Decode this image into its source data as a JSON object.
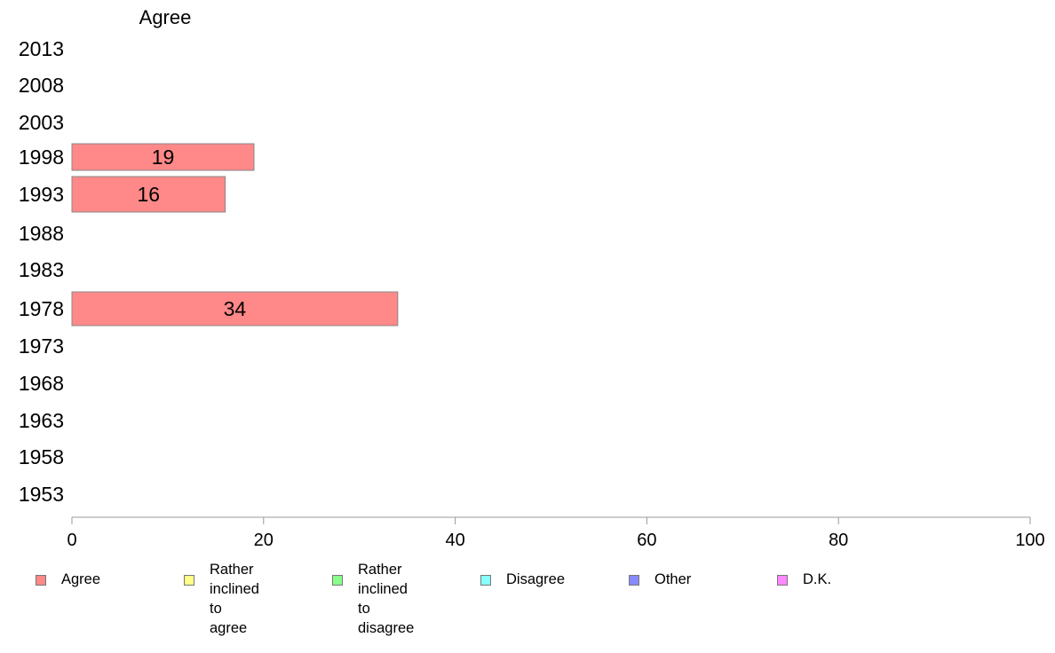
{
  "chart_data": {
    "type": "bar",
    "orientation": "horizontal",
    "title": "Agree",
    "categories": [
      "2013",
      "2008",
      "2003",
      "1998",
      "1993",
      "1988",
      "1983",
      "1978",
      "1973",
      "1968",
      "1963",
      "1958",
      "1953"
    ],
    "series": [
      {
        "name": "Agree",
        "values": [
          null,
          null,
          null,
          19,
          16,
          null,
          null,
          34,
          null,
          null,
          null,
          null,
          null
        ],
        "labels": [
          "",
          "",
          "",
          "19",
          "16",
          "",
          "",
          "34",
          "",
          "",
          "",
          "",
          ""
        ]
      }
    ],
    "xlim": [
      0,
      100
    ],
    "xticks": [
      "0",
      "20",
      "40",
      "60",
      "80",
      "100"
    ],
    "grid": false,
    "legend_position": "bottom"
  },
  "legend": [
    {
      "label": "Agree",
      "color": "#ff8888"
    },
    {
      "label": "Rather inclined\nto agree",
      "color": "#ffff88"
    },
    {
      "label": "Rather inclined\nto disagree",
      "color": "#88ff88"
    },
    {
      "label": "Disagree",
      "color": "#88ffff"
    },
    {
      "label": "Other",
      "color": "#8888ff"
    },
    {
      "label": "D.K.",
      "color": "#ff88ff"
    }
  ]
}
